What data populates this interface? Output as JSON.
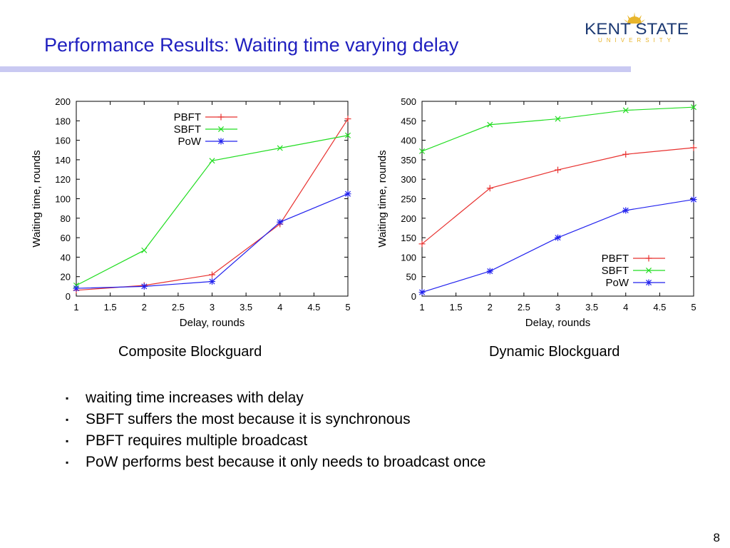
{
  "slide": {
    "title": "Performance Results: Waiting time varying delay",
    "logo": {
      "main": "KENT STATE",
      "sub": "UNIVERSITY",
      "colors": {
        "navy": "#1d3a73",
        "gold": "#e8b52c"
      }
    },
    "captions": [
      "Composite Blockguard",
      "Dynamic Blockguard"
    ],
    "bullets": [
      "waiting time increases with delay",
      "SBFT suffers the most because it is synchronous",
      "PBFT requires multiple broadcast",
      "PoW performs best because it only needs to broadcast once"
    ],
    "bullet_marker": "▪",
    "page_number": "8",
    "title_color": "#1f1fbf"
  },
  "chart_data": [
    {
      "type": "line",
      "xlabel": "Delay, rounds",
      "ylabel": "Waiting time, rounds",
      "x": [
        1,
        2,
        3,
        4,
        5
      ],
      "xlim": [
        1,
        5
      ],
      "ylim": [
        0,
        200
      ],
      "xticks": [
        "1",
        "1.5",
        "2",
        "2.5",
        "3",
        "3.5",
        "4",
        "4.5",
        "5"
      ],
      "yticks": [
        "0",
        "20",
        "40",
        "60",
        "80",
        "100",
        "120",
        "140",
        "160",
        "180",
        "200"
      ],
      "legend": "top-center",
      "grid": false,
      "series": [
        {
          "name": "PBFT",
          "color": "#e8312f",
          "marker": "plus",
          "values": [
            6,
            11,
            22,
            74,
            182
          ]
        },
        {
          "name": "SBFT",
          "color": "#22dd22",
          "marker": "cross",
          "values": [
            11,
            47,
            139,
            152,
            165
          ]
        },
        {
          "name": "PoW",
          "color": "#2222ee",
          "marker": "star",
          "values": [
            8,
            10,
            15,
            76,
            105
          ]
        }
      ]
    },
    {
      "type": "line",
      "xlabel": "Delay, rounds",
      "ylabel": "Waiting time, rounds",
      "x": [
        1,
        2,
        3,
        4,
        5
      ],
      "xlim": [
        1,
        5
      ],
      "ylim": [
        0,
        500
      ],
      "xticks": [
        "1",
        "1.5",
        "2",
        "2.5",
        "3",
        "3.5",
        "4",
        "4.5",
        "5"
      ],
      "yticks": [
        "0",
        "50",
        "100",
        "150",
        "200",
        "250",
        "300",
        "350",
        "400",
        "450",
        "500"
      ],
      "legend": "bottom-right",
      "grid": false,
      "series": [
        {
          "name": "PBFT",
          "color": "#e8312f",
          "marker": "plus",
          "values": [
            134,
            277,
            324,
            364,
            381
          ]
        },
        {
          "name": "SBFT",
          "color": "#22dd22",
          "marker": "cross",
          "values": [
            372,
            440,
            455,
            477,
            485
          ]
        },
        {
          "name": "PoW",
          "color": "#2222ee",
          "marker": "star",
          "values": [
            10,
            64,
            150,
            220,
            248
          ]
        }
      ]
    }
  ]
}
